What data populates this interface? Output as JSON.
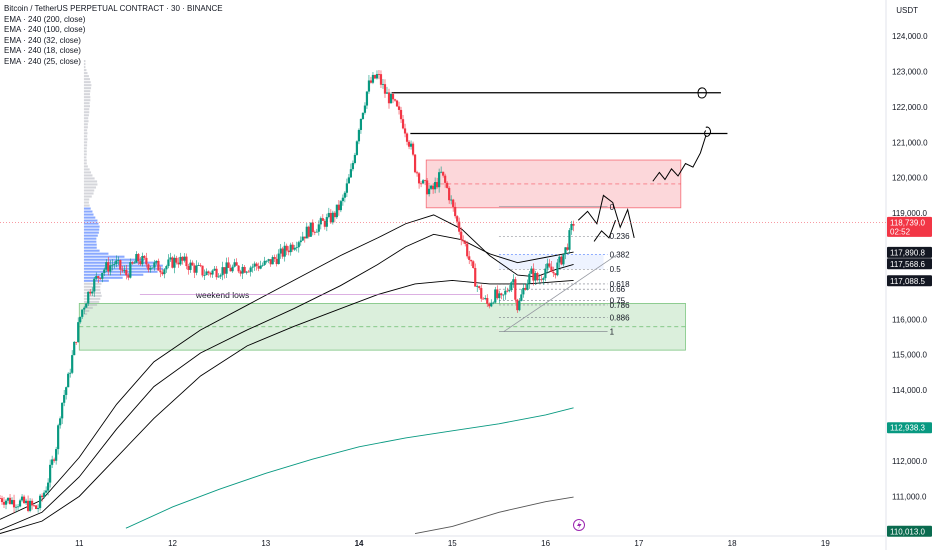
{
  "header": {
    "title": "Bitcoin / TetherUS PERPETUAL CONTRACT · 30 · BINANCE",
    "indicators": [
      "EMA · 240 (200, close)",
      "EMA · 240 (100, close)",
      "EMA · 240 (32, close)",
      "EMA · 240 (18, close)",
      "EMA · 240 (25, close)"
    ],
    "currency": "USDT"
  },
  "chart_data": {
    "type": "candlestick",
    "x_ticks": [
      {
        "label": "11",
        "x": 11.0
      },
      {
        "label": "12",
        "x": 12.0
      },
      {
        "label": "13",
        "x": 13.0
      },
      {
        "label": "14",
        "x": 14.0,
        "bold": true
      },
      {
        "label": "15",
        "x": 15.0
      },
      {
        "label": "16",
        "x": 16.0
      },
      {
        "label": "17",
        "x": 17.0
      },
      {
        "label": "18",
        "x": 18.0
      },
      {
        "label": "19",
        "x": 19.0
      }
    ],
    "y_ticks": [
      "124,000.0",
      "123,000.0",
      "122,000.0",
      "121,000.0",
      "120,000.0",
      "119,000.0",
      "116,000.0",
      "115,000.0",
      "114,000.0",
      "112,000.0",
      "111,000.0"
    ],
    "y_tick_values": [
      124000,
      123000,
      122000,
      121000,
      120000,
      119000,
      116000,
      115000,
      114000,
      112000,
      111000
    ],
    "ylim": [
      109880,
      125020
    ],
    "xlim": [
      10.15,
      19.65
    ],
    "price_labels": [
      {
        "label": "118,739.0",
        "sub": "02:52",
        "value": 118739,
        "color": "#f23645"
      },
      {
        "label": "117,890.8",
        "value": 117890.8,
        "color": "#131722"
      },
      {
        "label": "117,568.6",
        "value": 117568.6,
        "color": "#131722"
      },
      {
        "label": "117,088.5",
        "value": 117088.5,
        "color": "#131722"
      },
      {
        "label": "112,938.3",
        "value": 112938.3,
        "color": "#089981"
      },
      {
        "label": "110,013.0",
        "value": 110013,
        "color": "#0a6b4f"
      }
    ],
    "fib": {
      "x_start": 15.5,
      "x_end": 16.3,
      "high": 119180,
      "low": 115650,
      "levels": [
        {
          "label": "0",
          "value": 0
        },
        {
          "label": "0.236",
          "value": 0.236
        },
        {
          "label": "0.382",
          "value": 0.382
        },
        {
          "label": "0.5",
          "value": 0.5
        },
        {
          "label": "0.618",
          "value": 0.618
        },
        {
          "label": "0.66",
          "value": 0.66
        },
        {
          "label": "0.75",
          "value": 0.75
        },
        {
          "label": "0.786",
          "value": 0.786
        },
        {
          "label": "0.886",
          "value": 0.886
        },
        {
          "label": "1",
          "value": 1
        }
      ]
    },
    "zones": [
      {
        "name": "supply",
        "x1": 14.72,
        "x2": 17.45,
        "y1": 120500,
        "y2": 119150,
        "color": "#f23645"
      },
      {
        "name": "demand",
        "x1": 11.0,
        "x2": 17.5,
        "y1": 116450,
        "y2": 115130,
        "color": "#4caf50"
      }
    ],
    "annotations": [
      {
        "text": "weekend lows",
        "x": 12.25,
        "y": 116600
      }
    ],
    "horizontal_lines": [
      {
        "x1": 14.35,
        "x2": 17.88,
        "y": 122400
      },
      {
        "x1": 14.55,
        "x2": 17.95,
        "y": 121250
      }
    ],
    "ema_series": [
      {
        "points": [
          [
            10.15,
            110350
          ],
          [
            10.6,
            110900
          ],
          [
            11.0,
            112100
          ],
          [
            11.4,
            113600
          ],
          [
            11.8,
            114800
          ],
          [
            12.3,
            115700
          ],
          [
            12.8,
            116400
          ],
          [
            13.3,
            117100
          ],
          [
            13.8,
            117800
          ],
          [
            14.2,
            118300
          ],
          [
            14.5,
            118700
          ],
          [
            14.8,
            118950
          ],
          [
            15.1,
            118550
          ],
          [
            15.4,
            117800
          ],
          [
            15.7,
            117250
          ],
          [
            15.9,
            117200
          ],
          [
            16.1,
            117400
          ],
          [
            16.3,
            117550
          ]
        ]
      },
      {
        "points": [
          [
            10.15,
            110050
          ],
          [
            10.6,
            110550
          ],
          [
            11.0,
            111550
          ],
          [
            11.4,
            112900
          ],
          [
            11.8,
            114100
          ],
          [
            12.3,
            115050
          ],
          [
            12.8,
            115700
          ],
          [
            13.3,
            116300
          ],
          [
            13.8,
            116950
          ],
          [
            14.2,
            117550
          ],
          [
            14.5,
            118050
          ],
          [
            14.8,
            118400
          ],
          [
            15.1,
            118250
          ],
          [
            15.4,
            117850
          ],
          [
            15.7,
            117600
          ],
          [
            16.0,
            117750
          ],
          [
            16.3,
            117900
          ]
        ]
      },
      {
        "points": [
          [
            10.15,
            109950
          ],
          [
            10.6,
            110300
          ],
          [
            11.0,
            111000
          ],
          [
            11.4,
            112100
          ],
          [
            11.8,
            113200
          ],
          [
            12.3,
            114400
          ],
          [
            12.8,
            115250
          ],
          [
            13.3,
            115800
          ],
          [
            13.8,
            116300
          ],
          [
            14.2,
            116700
          ],
          [
            14.6,
            117000
          ],
          [
            15.0,
            117100
          ],
          [
            15.4,
            117000
          ],
          [
            15.8,
            117000
          ],
          [
            16.3,
            117100
          ]
        ]
      },
      {
        "points": [
          [
            11.5,
            110100
          ],
          [
            12.0,
            110700
          ],
          [
            12.5,
            111200
          ],
          [
            13.0,
            111650
          ],
          [
            13.5,
            112050
          ],
          [
            14.0,
            112400
          ],
          [
            14.5,
            112650
          ],
          [
            15.0,
            112850
          ],
          [
            15.5,
            113050
          ],
          [
            16.0,
            113300
          ],
          [
            16.3,
            113500
          ]
        ],
        "color": "#089981"
      },
      {
        "points": [
          [
            14.6,
            109950
          ],
          [
            15.0,
            110150
          ],
          [
            15.5,
            110550
          ],
          [
            16.0,
            110850
          ],
          [
            16.3,
            110980
          ]
        ],
        "color": "#555555"
      }
    ],
    "candle_path": [
      [
        10.15,
        110950
      ],
      [
        10.4,
        110800
      ],
      [
        10.55,
        110650
      ],
      [
        10.65,
        111300
      ],
      [
        10.75,
        112400
      ],
      [
        10.8,
        113500
      ],
      [
        10.88,
        114300
      ],
      [
        10.95,
        115300
      ],
      [
        11.02,
        116200
      ],
      [
        11.12,
        116900
      ],
      [
        11.25,
        117400
      ],
      [
        11.38,
        117600
      ],
      [
        11.5,
        117250
      ],
      [
        11.62,
        117700
      ],
      [
        11.75,
        117550
      ],
      [
        11.9,
        117450
      ],
      [
        12.05,
        117700
      ],
      [
        12.2,
        117500
      ],
      [
        12.35,
        117300
      ],
      [
        12.5,
        117400
      ],
      [
        12.7,
        117450
      ],
      [
        12.85,
        117500
      ],
      [
        13.0,
        117550
      ],
      [
        13.15,
        117800
      ],
      [
        13.3,
        118150
      ],
      [
        13.45,
        118500
      ],
      [
        13.6,
        118700
      ],
      [
        13.72,
        118900
      ],
      [
        13.82,
        119300
      ],
      [
        13.92,
        120200
      ],
      [
        14.0,
        121500
      ],
      [
        14.1,
        122600
      ],
      [
        14.2,
        122900
      ],
      [
        14.28,
        122400
      ],
      [
        14.38,
        122050
      ],
      [
        14.48,
        121500
      ],
      [
        14.55,
        120900
      ],
      [
        14.6,
        120300
      ],
      [
        14.68,
        119800
      ],
      [
        14.78,
        119600
      ],
      [
        14.88,
        120100
      ],
      [
        14.95,
        119650
      ],
      [
        15.02,
        119000
      ],
      [
        15.08,
        118500
      ],
      [
        15.15,
        118000
      ],
      [
        15.22,
        117300
      ],
      [
        15.3,
        116700
      ],
      [
        15.38,
        116400
      ],
      [
        15.45,
        116700
      ],
      [
        15.52,
        116500
      ],
      [
        15.58,
        116800
      ],
      [
        15.65,
        117200
      ],
      [
        15.7,
        116300
      ],
      [
        15.78,
        117000
      ],
      [
        15.85,
        117300
      ],
      [
        15.92,
        117100
      ],
      [
        16.0,
        117450
      ],
      [
        16.08,
        117300
      ],
      [
        16.15,
        117600
      ],
      [
        16.22,
        118000
      ],
      [
        16.3,
        118750
      ]
    ],
    "volume_profile": {
      "x_left": 11.05,
      "max_width": 0.85
    }
  }
}
